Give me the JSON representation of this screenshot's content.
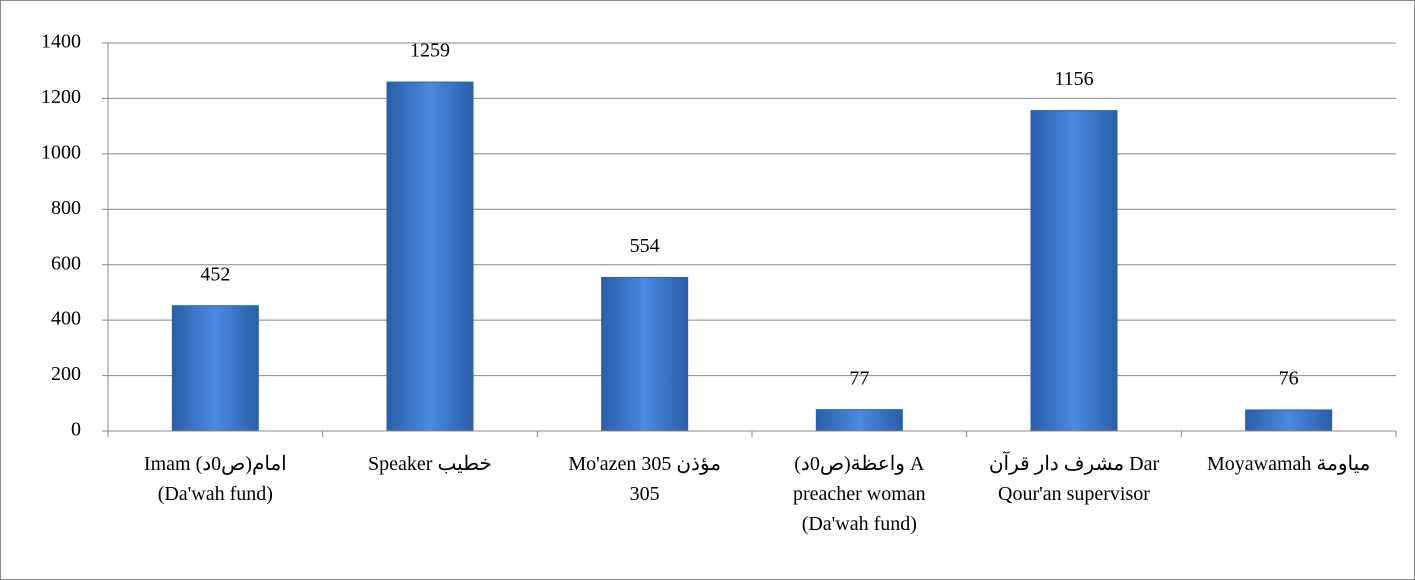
{
  "chart_data": {
    "type": "bar",
    "categories": [
      "Imam  امام(ص0د)\n(Da'wah fund)",
      "Speaker خطيب",
      "Mo'azen  305 مؤذن\n305",
      "واعظة(ص0د)  A\npreacher woman\n(Da'wah fund)",
      "مشرف دار قرآن  Dar\nQour'an supervisor",
      "Moyawamah مياومة"
    ],
    "values": [
      452,
      1259,
      554,
      77,
      1156,
      76
    ],
    "color": "#3a7bd5",
    "ylim": [
      0,
      1400
    ],
    "yticks": [
      0,
      200,
      400,
      600,
      800,
      1000,
      1200,
      1400
    ],
    "grid": true
  }
}
